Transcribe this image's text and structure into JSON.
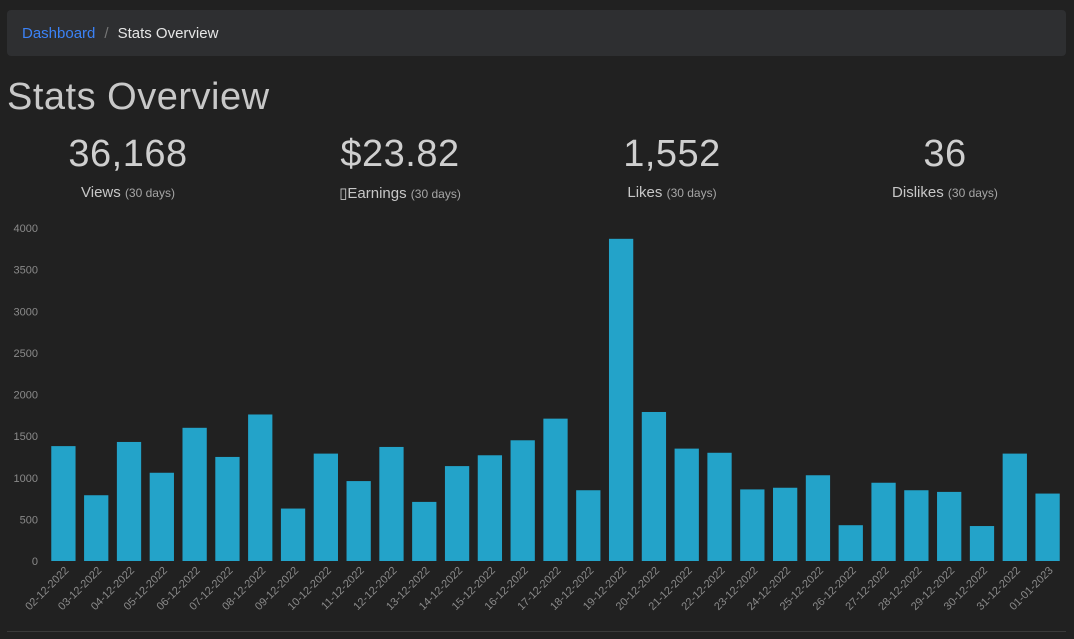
{
  "breadcrumb": {
    "home": "Dashboard",
    "separator": "/",
    "current": "Stats Overview"
  },
  "page": {
    "title": "Stats Overview"
  },
  "stats": [
    {
      "value": "36,168",
      "label": "Views",
      "period": "(30 days)"
    },
    {
      "value": "$23.82",
      "label": "▯Earnings",
      "period": "(30 days)"
    },
    {
      "value": "1,552",
      "label": "Likes",
      "period": "(30 days)"
    },
    {
      "value": "36",
      "label": "Dislikes",
      "period": "(30 days)"
    }
  ],
  "colors": {
    "bar": "#23a3c9",
    "background": "#212121",
    "link": "#3b82f6"
  },
  "chart_data": {
    "type": "bar",
    "categories": [
      "02-12-2022",
      "03-12-2022",
      "04-12-2022",
      "05-12-2022",
      "06-12-2022",
      "07-12-2022",
      "08-12-2022",
      "09-12-2022",
      "10-12-2022",
      "11-12-2022",
      "12-12-2022",
      "13-12-2022",
      "14-12-2022",
      "15-12-2022",
      "16-12-2022",
      "17-12-2022",
      "18-12-2022",
      "19-12-2022",
      "20-12-2022",
      "21-12-2022",
      "22-12-2022",
      "23-12-2022",
      "24-12-2022",
      "25-12-2022",
      "26-12-2022",
      "27-12-2022",
      "28-12-2022",
      "29-12-2022",
      "30-12-2022",
      "31-12-2022",
      "01-01-2023"
    ],
    "values": [
      1380,
      790,
      1430,
      1060,
      1600,
      1250,
      1760,
      630,
      1290,
      960,
      1370,
      710,
      1140,
      1270,
      1450,
      1710,
      850,
      3870,
      1790,
      1350,
      1300,
      860,
      880,
      1030,
      430,
      940,
      850,
      830,
      420,
      1290,
      810
    ],
    "title": "",
    "xlabel": "",
    "ylabel": "",
    "ylim": [
      0,
      4000
    ],
    "yticks": [
      0,
      500,
      1000,
      1500,
      2000,
      2500,
      3000,
      3500,
      4000
    ],
    "grid": false
  }
}
